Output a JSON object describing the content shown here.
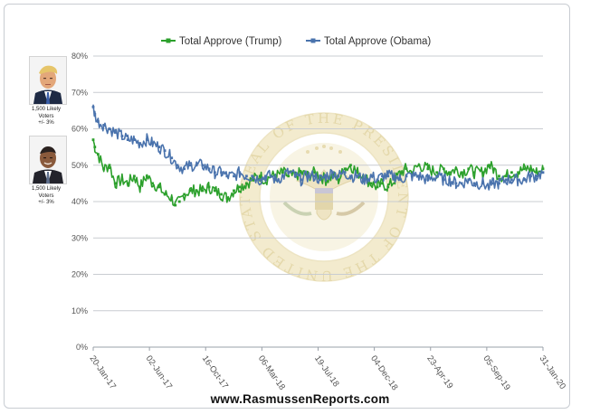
{
  "sidebar": {
    "trump_caption": [
      "1,500 Likely",
      "Voters",
      "+/- 3%"
    ],
    "obama_caption": [
      "1,500 Likely",
      "Voters",
      "+/- 3%"
    ]
  },
  "watermark": {
    "ring_text": "SEAL OF THE PRESIDENT OF THE UNITED STATES"
  },
  "footer": {
    "url": "www.RasmussenReports.com"
  },
  "colors": {
    "trump": "#2ca02c",
    "obama": "#4a73ad",
    "grid": "#c9ccd1",
    "seal": "#e8dcb0"
  },
  "icons": {
    "trump_photo": "trump-portrait",
    "obama_photo": "obama-portrait",
    "seal": "presidential-seal"
  },
  "chart_data": {
    "type": "line",
    "title": "",
    "xlabel": "",
    "ylabel": "",
    "ylim": [
      0,
      80
    ],
    "y_ticks": [
      "0%",
      "10%",
      "20%",
      "30%",
      "40%",
      "50%",
      "60%",
      "70%",
      "80%"
    ],
    "y_tick_values": [
      0,
      10,
      20,
      30,
      40,
      50,
      60,
      70,
      80
    ],
    "x_ticks": [
      "20-Jan-17",
      "02-Jun-17",
      "16-Oct-17",
      "06-Mar-18",
      "19-Jul-18",
      "04-Dec-18",
      "23-Apr-19",
      "05-Sep-19",
      "31-Jan-20"
    ],
    "x_range": [
      "2017-01-20",
      "2020-01-31"
    ],
    "grid": true,
    "legend": "top-center",
    "series": [
      {
        "name": "Total Approve (Trump)",
        "color": "#2ca02c",
        "points": [
          [
            "2017-01-20",
            57
          ],
          [
            "2017-01-24",
            55
          ],
          [
            "2017-02-01",
            53
          ],
          [
            "2017-02-15",
            49
          ],
          [
            "2017-03-01",
            50
          ],
          [
            "2017-03-15",
            45
          ],
          [
            "2017-04-01",
            46
          ],
          [
            "2017-04-15",
            45
          ],
          [
            "2017-05-01",
            47
          ],
          [
            "2017-05-15",
            44
          ],
          [
            "2017-06-01",
            47
          ],
          [
            "2017-06-15",
            45
          ],
          [
            "2017-07-01",
            44
          ],
          [
            "2017-07-15",
            42
          ],
          [
            "2017-08-01",
            41
          ],
          [
            "2017-08-10",
            39
          ],
          [
            "2017-08-20",
            40
          ],
          [
            "2017-09-01",
            42
          ],
          [
            "2017-09-15",
            43
          ],
          [
            "2017-10-01",
            43
          ],
          [
            "2017-10-16",
            43
          ],
          [
            "2017-11-01",
            44
          ],
          [
            "2017-11-15",
            43
          ],
          [
            "2017-12-01",
            42
          ],
          [
            "2017-12-15",
            41
          ],
          [
            "2018-01-01",
            43
          ],
          [
            "2018-01-15",
            44
          ],
          [
            "2018-02-01",
            45
          ],
          [
            "2018-02-15",
            46
          ],
          [
            "2018-03-06",
            47
          ],
          [
            "2018-03-20",
            46
          ],
          [
            "2018-04-01",
            47
          ],
          [
            "2018-04-15",
            47
          ],
          [
            "2018-05-01",
            48
          ],
          [
            "2018-05-15",
            47
          ],
          [
            "2018-06-01",
            47
          ],
          [
            "2018-06-15",
            48
          ],
          [
            "2018-07-01",
            47
          ],
          [
            "2018-07-19",
            48
          ],
          [
            "2018-08-01",
            47
          ],
          [
            "2018-08-15",
            46
          ],
          [
            "2018-09-01",
            47
          ],
          [
            "2018-09-15",
            46
          ],
          [
            "2018-10-01",
            49
          ],
          [
            "2018-10-15",
            50
          ],
          [
            "2018-11-01",
            48
          ],
          [
            "2018-11-15",
            47
          ],
          [
            "2018-12-04",
            45
          ],
          [
            "2018-12-20",
            44
          ],
          [
            "2019-01-01",
            45
          ],
          [
            "2019-01-15",
            44
          ],
          [
            "2019-02-01",
            46
          ],
          [
            "2019-02-15",
            48
          ],
          [
            "2019-03-01",
            49
          ],
          [
            "2019-03-15",
            48
          ],
          [
            "2019-04-01",
            50
          ],
          [
            "2019-04-23",
            49
          ],
          [
            "2019-05-15",
            48
          ],
          [
            "2019-06-01",
            49
          ],
          [
            "2019-06-15",
            48
          ],
          [
            "2019-07-01",
            49
          ],
          [
            "2019-07-15",
            48
          ],
          [
            "2019-08-01",
            49
          ],
          [
            "2019-08-15",
            48
          ],
          [
            "2019-09-05",
            48
          ],
          [
            "2019-09-20",
            50
          ],
          [
            "2019-10-01",
            49
          ],
          [
            "2019-10-15",
            47
          ],
          [
            "2019-11-01",
            47
          ],
          [
            "2019-11-15",
            48
          ],
          [
            "2019-12-01",
            48
          ],
          [
            "2019-12-15",
            49
          ],
          [
            "2020-01-01",
            49
          ],
          [
            "2020-01-15",
            48
          ],
          [
            "2020-01-31",
            49
          ]
        ]
      },
      {
        "name": "Total Approve (Obama)",
        "color": "#4a73ad",
        "points": [
          [
            "2017-01-20",
            66
          ],
          [
            "2017-01-24",
            64
          ],
          [
            "2017-02-01",
            62
          ],
          [
            "2017-02-15",
            61
          ],
          [
            "2017-03-01",
            60
          ],
          [
            "2017-03-15",
            59
          ],
          [
            "2017-04-01",
            58
          ],
          [
            "2017-04-15",
            57
          ],
          [
            "2017-05-01",
            57
          ],
          [
            "2017-05-15",
            56
          ],
          [
            "2017-06-01",
            57
          ],
          [
            "2017-06-15",
            56
          ],
          [
            "2017-07-01",
            55
          ],
          [
            "2017-07-15",
            54
          ],
          [
            "2017-08-01",
            52
          ],
          [
            "2017-08-15",
            50
          ],
          [
            "2017-09-01",
            49
          ],
          [
            "2017-09-15",
            50
          ],
          [
            "2017-10-01",
            50
          ],
          [
            "2017-10-16",
            50
          ],
          [
            "2017-11-01",
            49
          ],
          [
            "2017-11-15",
            48
          ],
          [
            "2017-12-01",
            48
          ],
          [
            "2017-12-15",
            47
          ],
          [
            "2018-01-01",
            47
          ],
          [
            "2018-01-15",
            48
          ],
          [
            "2018-02-01",
            47
          ],
          [
            "2018-02-15",
            47
          ],
          [
            "2018-03-06",
            46
          ],
          [
            "2018-03-20",
            47
          ],
          [
            "2018-04-01",
            47
          ],
          [
            "2018-04-15",
            46
          ],
          [
            "2018-05-01",
            47
          ],
          [
            "2018-05-15",
            48
          ],
          [
            "2018-06-01",
            47
          ],
          [
            "2018-06-15",
            46
          ],
          [
            "2018-07-01",
            47
          ],
          [
            "2018-07-19",
            47
          ],
          [
            "2018-08-01",
            46
          ],
          [
            "2018-08-15",
            47
          ],
          [
            "2018-09-01",
            48
          ],
          [
            "2018-09-15",
            47
          ],
          [
            "2018-10-01",
            48
          ],
          [
            "2018-10-15",
            47
          ],
          [
            "2018-11-01",
            47
          ],
          [
            "2018-11-15",
            46
          ],
          [
            "2018-12-04",
            47
          ],
          [
            "2018-12-20",
            46
          ],
          [
            "2019-01-01",
            47
          ],
          [
            "2019-01-15",
            47
          ],
          [
            "2019-02-01",
            47
          ],
          [
            "2019-02-15",
            46
          ],
          [
            "2019-03-01",
            47
          ],
          [
            "2019-03-15",
            47
          ],
          [
            "2019-04-01",
            47
          ],
          [
            "2019-04-23",
            46
          ],
          [
            "2019-05-15",
            47
          ],
          [
            "2019-06-01",
            46
          ],
          [
            "2019-06-15",
            46
          ],
          [
            "2019-07-01",
            45
          ],
          [
            "2019-07-15",
            45
          ],
          [
            "2019-08-01",
            46
          ],
          [
            "2019-08-15",
            45
          ],
          [
            "2019-09-05",
            45
          ],
          [
            "2019-09-20",
            44
          ],
          [
            "2019-10-01",
            45
          ],
          [
            "2019-10-15",
            45
          ],
          [
            "2019-11-01",
            46
          ],
          [
            "2019-11-15",
            46
          ],
          [
            "2019-12-01",
            46
          ],
          [
            "2019-12-15",
            46
          ],
          [
            "2020-01-01",
            47
          ],
          [
            "2020-01-15",
            47
          ],
          [
            "2020-01-31",
            48
          ]
        ]
      }
    ]
  }
}
